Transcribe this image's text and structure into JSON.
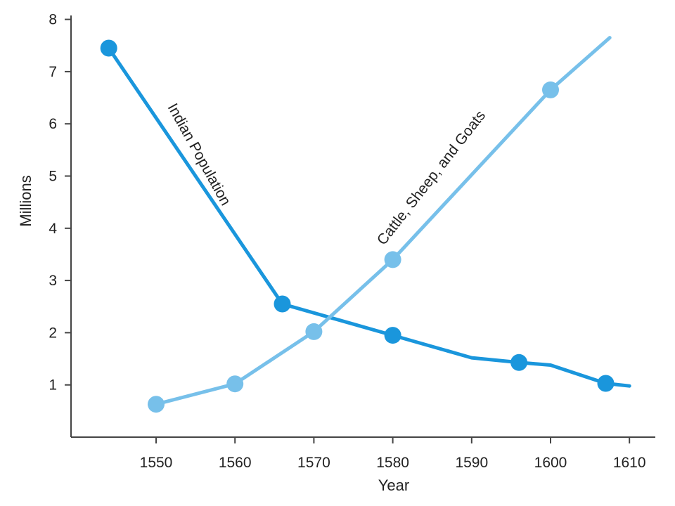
{
  "chart_data": {
    "type": "line",
    "xlabel": "Year",
    "ylabel": "Millions",
    "xlim": [
      1541,
      1613
    ],
    "ylim": [
      0,
      8
    ],
    "x_ticks": [
      "1550",
      "1560",
      "1570",
      "1580",
      "1590",
      "1600",
      "1610"
    ],
    "y_ticks": [
      "1",
      "2",
      "3",
      "4",
      "5",
      "6",
      "7",
      "8"
    ],
    "grid": false,
    "series": [
      {
        "name": "Indian Population",
        "color": "#1a96dc",
        "points": [
          [
            1544,
            7.45
          ],
          [
            1566,
            2.55
          ],
          [
            1580,
            1.95
          ],
          [
            1590,
            1.52
          ],
          [
            1596,
            1.43
          ],
          [
            1600,
            1.38
          ],
          [
            1607,
            1.03
          ],
          [
            1610,
            0.98
          ]
        ],
        "markers": [
          [
            1544,
            7.45
          ],
          [
            1566,
            2.55
          ],
          [
            1580,
            1.95
          ],
          [
            1596,
            1.43
          ],
          [
            1607,
            1.03
          ]
        ]
      },
      {
        "name": "Cattle, Sheep, and Goats",
        "color": "#77c0ea",
        "points": [
          [
            1550,
            0.63
          ],
          [
            1560,
            1.02
          ],
          [
            1570,
            2.02
          ],
          [
            1580,
            3.4
          ],
          [
            1600,
            6.65
          ],
          [
            1607.5,
            7.65
          ]
        ],
        "markers": [
          [
            1550,
            0.63
          ],
          [
            1560,
            1.02
          ],
          [
            1570,
            2.02
          ],
          [
            1580,
            3.4
          ],
          [
            1600,
            6.65
          ]
        ]
      }
    ]
  }
}
